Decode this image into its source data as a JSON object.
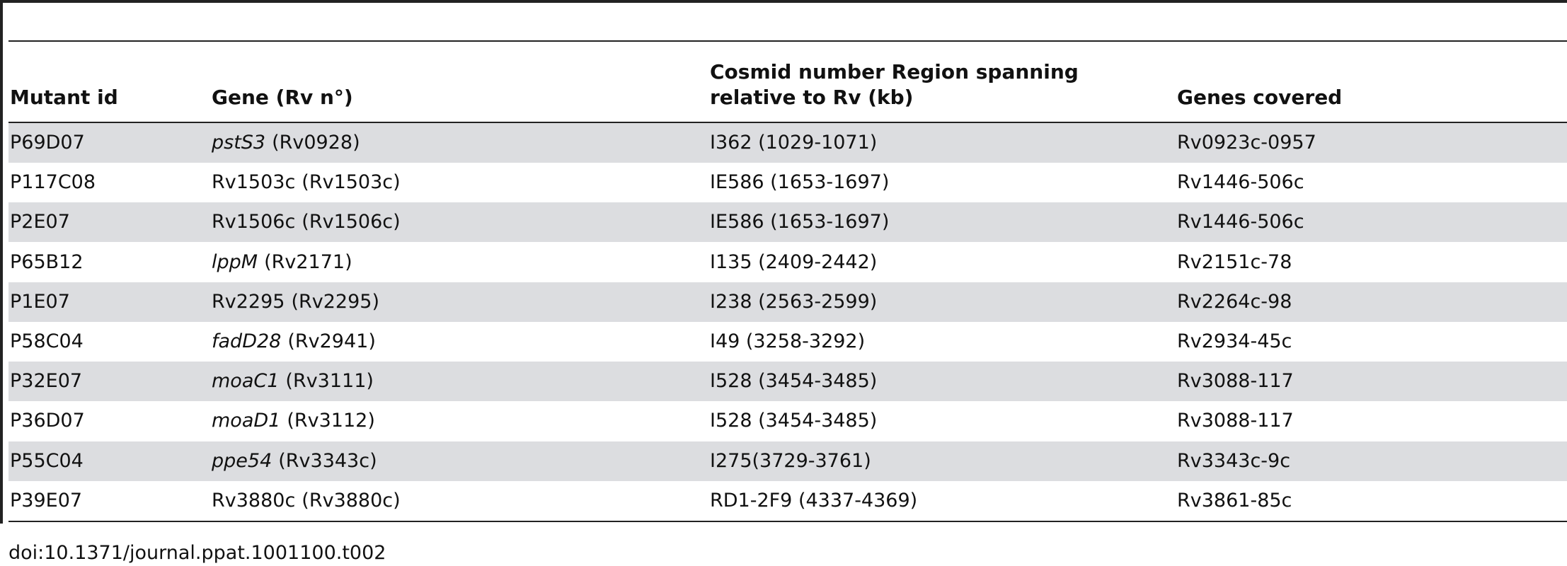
{
  "table": {
    "header": [
      "Mutant id",
      "Gene (Rv n°)",
      "Cosmid number Region spanning relative to Rv (kb)",
      "Genes covered"
    ],
    "rows": [
      [
        "P69D07",
        {
          "name": "pstS3",
          "number": "(Rv0928)",
          "italic": true
        },
        "I362 (1029-1071)",
        "Rv0923c-0957"
      ],
      [
        "P117C08",
        {
          "name": "Rv1503c",
          "number": "(Rv1503c)",
          "italic": false
        },
        "IE586 (1653-1697)",
        "Rv1446-506c"
      ],
      [
        "P2E07",
        {
          "name": "Rv1506c",
          "number": "(Rv1506c)",
          "italic": false
        },
        "IE586 (1653-1697)",
        "Rv1446-506c"
      ],
      [
        "P65B12",
        {
          "name": "lppM",
          "number": "(Rv2171)",
          "italic": true
        },
        "I135 (2409-2442)",
        "Rv2151c-78"
      ],
      [
        "P1E07",
        {
          "name": "Rv2295",
          "number": "(Rv2295)",
          "italic": false
        },
        "I238 (2563-2599)",
        "Rv2264c-98"
      ],
      [
        "P58C04",
        {
          "name": "fadD28",
          "number": "(Rv2941)",
          "italic": true
        },
        "I49 (3258-3292)",
        "Rv2934-45c"
      ],
      [
        "P32E07",
        {
          "name": "moaC1",
          "number": "(Rv3111)",
          "italic": true
        },
        "I528 (3454-3485)",
        "Rv3088-117"
      ],
      [
        "P36D07",
        {
          "name": "moaD1",
          "number": "(Rv3112)",
          "italic": true
        },
        "I528 (3454-3485)",
        "Rv3088-117"
      ],
      [
        "P55C04",
        {
          "name": "ppe54",
          "number": "(Rv3343c)",
          "italic": true
        },
        "I275(3729-3761)",
        "Rv3343c-9c"
      ],
      [
        "P39E07",
        {
          "name": "Rv3880c",
          "number": "(Rv3880c)",
          "italic": false
        },
        "RD1-2F9 (4337-4369)",
        "Rv3861-85c"
      ]
    ]
  },
  "footer": "doi:10.1371/journal.ppat.1001100.t002"
}
